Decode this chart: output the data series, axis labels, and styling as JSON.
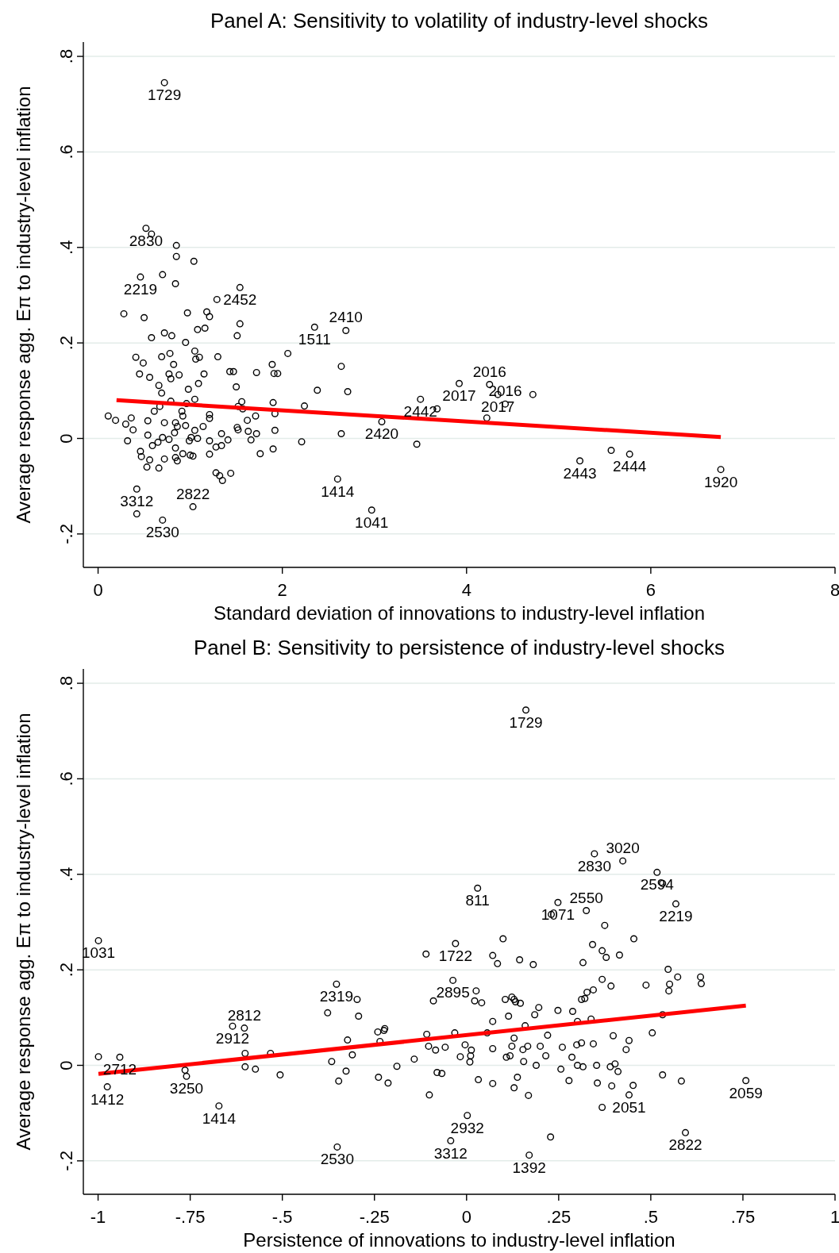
{
  "chart_data": [
    {
      "type": "scatter",
      "title": "Panel A: Sensitivity to volatility of industry-level shocks",
      "xlabel": "Standard deviation of innovations to industry-level inflation",
      "ylabel": "Average response agg. Eπ to industry-level inflation",
      "xlim": [
        -0.16,
        8
      ],
      "ylim": [
        -0.27,
        0.83
      ],
      "xticks": [
        0,
        2,
        4,
        6,
        8
      ],
      "yticks": [
        {
          "value": -0.2,
          "label": "-.2"
        },
        0,
        {
          "value": 0.2,
          "label": ".2"
        },
        {
          "value": 0.4,
          "label": ".4"
        },
        {
          "value": 0.6,
          "label": ".6"
        },
        {
          "value": 0.8,
          "label": ".8"
        }
      ],
      "grid": "y",
      "marker": "circle",
      "series": [
        {
          "color": "#000000",
          "x": [
            0.72,
            0.52,
            0.58,
            0.85,
            0.85,
            1.04,
            0.46,
            0.7,
            0.84,
            1.54,
            1.29,
            0.28,
            0.5,
            0.97,
            1.18,
            1.21,
            2.35,
            2.69,
            1.54,
            1.08,
            1.16,
            0.72,
            0.8,
            0.58,
            1.51,
            0.95,
            0.41,
            0.69,
            0.78,
            1.05,
            1.06,
            1.1,
            1.3,
            2.06,
            0.49,
            0.82,
            1.89,
            2.64,
            0.45,
            0.56,
            0.77,
            0.79,
            0.88,
            1.15,
            1.43,
            1.47,
            1.72,
            1.91,
            1.95,
            3.92,
            4.25,
            0.66,
            1.09,
            1.5,
            2.38,
            2.71,
            0.98,
            0.69,
            3.5,
            4.72,
            4.34,
            4.42,
            0.79,
            1.05,
            0.96,
            1.56,
            1.9,
            2.24,
            3.68,
            0.67,
            0.61,
            1.57,
            0.91,
            0.92,
            1.21,
            1.92,
            1.71,
            1.52,
            3.08,
            4.22,
            0.11,
            0.36,
            0.19,
            0.54,
            0.72,
            1.21,
            0.84,
            0.86,
            0.95,
            1.62,
            0.3,
            1.92,
            0.38,
            1.05,
            1.14,
            1.52,
            1.51,
            1.63,
            2.64,
            1.34,
            1.72,
            0.83,
            0.54,
            1.01,
            0.7,
            0.77,
            0.32,
            1.21,
            0.99,
            1.08,
            1.41,
            1.66,
            0.65,
            2.21,
            3.46,
            0.59,
            1.34,
            1.28,
            0.84,
            1.9,
            0.46,
            0.92,
            1.0,
            0.84,
            1.03,
            0.47,
            1.76,
            1.21,
            0.86,
            0.72,
            0.56,
            0.66,
            0.53,
            1.28,
            1.32,
            1.44,
            1.35,
            2.6,
            0.42,
            1.03,
            2.97,
            0.7,
            0.42,
            5.23,
            5.57,
            5.77,
            6.76
          ],
          "values": [
            0.745,
            0.44,
            0.428,
            0.404,
            0.381,
            0.371,
            0.338,
            0.343,
            0.324,
            0.316,
            0.291,
            0.261,
            0.253,
            0.263,
            0.265,
            0.255,
            0.233,
            0.226,
            0.24,
            0.228,
            0.231,
            0.221,
            0.215,
            0.211,
            0.215,
            0.201,
            0.17,
            0.171,
            0.178,
            0.183,
            0.166,
            0.17,
            0.171,
            0.178,
            0.158,
            0.155,
            0.155,
            0.151,
            0.135,
            0.128,
            0.135,
            0.125,
            0.133,
            0.135,
            0.14,
            0.14,
            0.138,
            0.136,
            0.136,
            0.115,
            0.113,
            0.111,
            0.115,
            0.108,
            0.101,
            0.098,
            0.103,
            0.095,
            0.082,
            0.092,
            0.092,
            0.072,
            0.078,
            0.082,
            0.073,
            0.077,
            0.075,
            0.068,
            0.062,
            0.067,
            0.057,
            0.062,
            0.057,
            0.047,
            0.05,
            0.052,
            0.047,
            0.067,
            0.035,
            0.043,
            0.047,
            0.043,
            0.038,
            0.037,
            0.033,
            0.042,
            0.033,
            0.025,
            0.027,
            0.038,
            0.03,
            0.017,
            0.018,
            0.017,
            0.025,
            0.018,
            0.023,
            0.015,
            0.01,
            0.01,
            0.01,
            0.012,
            0.007,
            0.002,
            0.002,
            -0.002,
            -0.005,
            -0.005,
            -0.005,
            0,
            -0.003,
            -0.003,
            -0.008,
            -0.007,
            -0.012,
            -0.015,
            -0.015,
            -0.018,
            -0.02,
            -0.022,
            -0.027,
            -0.032,
            -0.035,
            -0.04,
            -0.037,
            -0.038,
            -0.032,
            -0.033,
            -0.047,
            -0.043,
            -0.045,
            -0.062,
            -0.06,
            -0.072,
            -0.078,
            -0.073,
            -0.088,
            -0.085,
            -0.106,
            -0.143,
            -0.15,
            -0.171,
            -0.158,
            -0.047,
            -0.025,
            -0.033,
            -0.065
          ]
        },
        {
          "type": "line",
          "marker": "none",
          "color": "#ff0000",
          "x": [
            0.2,
            6.76
          ],
          "values": [
            0.08,
            0.003
          ]
        }
      ],
      "annotations": [
        {
          "text": "1729",
          "x": 0.72,
          "y": 0.745
        },
        {
          "text": "2830",
          "x": 0.52,
          "y": 0.44
        },
        {
          "text": "2219",
          "x": 0.46,
          "y": 0.338
        },
        {
          "text": "2452",
          "x": 1.54,
          "y": 0.316
        },
        {
          "text": "1511",
          "x": 2.35,
          "y": 0.233
        },
        {
          "text": "2410",
          "x": 2.69,
          "y": 0.226
        },
        {
          "text": "2017",
          "x": 3.92,
          "y": 0.115
        },
        {
          "text": "2016",
          "x": 4.25,
          "y": 0.113
        },
        {
          "text": "2442",
          "x": 3.5,
          "y": 0.082
        },
        {
          "text": "2017",
          "x": 4.34,
          "y": 0.092
        },
        {
          "text": "2016",
          "x": 4.42,
          "y": 0.072
        },
        {
          "text": "2420",
          "x": 3.08,
          "y": 0.035
        },
        {
          "text": "1414",
          "x": 2.6,
          "y": -0.085
        },
        {
          "text": "1041",
          "x": 2.97,
          "y": -0.15
        },
        {
          "text": "2530",
          "x": 0.7,
          "y": -0.171
        },
        {
          "text": "2822",
          "x": 1.03,
          "y": -0.143
        },
        {
          "text": "3312",
          "x": 0.42,
          "y": -0.158
        },
        {
          "text": "2443",
          "x": 5.23,
          "y": -0.047
        },
        {
          "text": "2444",
          "x": 5.77,
          "y": -0.033
        },
        {
          "text": "1920",
          "x": 6.76,
          "y": -0.065
        }
      ]
    },
    {
      "type": "scatter",
      "title": "Panel B: Sensitivity to persistence of industry-level shocks",
      "xlabel": "Persistence of innovations to industry-level inflation",
      "ylabel": "Average response agg. Eπ to industry-level inflation",
      "xlim": [
        -1.04,
        1
      ],
      "ylim": [
        -0.27,
        0.83
      ],
      "xticks": [
        -1,
        {
          "value": -0.75,
          "label": "-.75"
        },
        {
          "value": -0.5,
          "label": "-.5"
        },
        {
          "value": -0.25,
          "label": "-.25"
        },
        0,
        {
          "value": 0.25,
          "label": ".25"
        },
        {
          "value": 0.5,
          "label": ".5"
        },
        {
          "value": 0.75,
          "label": ".75"
        },
        1
      ],
      "yticks": [
        {
          "value": -0.2,
          "label": "-.2"
        },
        0,
        {
          "value": 0.2,
          "label": ".2"
        },
        {
          "value": 0.4,
          "label": ".4"
        },
        {
          "value": 0.6,
          "label": ".6"
        },
        {
          "value": 0.8,
          "label": ".8"
        }
      ],
      "grid": "y",
      "marker": "circle",
      "series": [
        {
          "color": "#000000",
          "x": [
            0.161,
            0.347,
            0.424,
            0.517,
            0.532,
            0.03,
            0.248,
            0.23,
            0.325,
            0.568,
            -0.999,
            0.375,
            -0.03,
            0.099,
            0.342,
            0.454,
            -0.11,
            0.071,
            0.368,
            0.415,
            0.379,
            0.144,
            0.084,
            0.181,
            0.316,
            0.547,
            0.573,
            0.635,
            0.637,
            0.551,
            0.549,
            0.368,
            0.487,
            0.392,
            -0.353,
            -0.037,
            0.327,
            0.026,
            0.344,
            0.312,
            0.321,
            -0.09,
            -0.297,
            0.022,
            0.041,
            0.105,
            0.123,
            0.129,
            0.133,
            0.146,
            0.196,
            -0.377,
            0.248,
            0.288,
            -0.293,
            0.185,
            0.114,
            0.532,
            -0.635,
            -0.603,
            0.071,
            0.301,
            0.338,
            0.159,
            -0.222,
            -0.224,
            -0.241,
            -0.108,
            -0.032,
            0.056,
            0.22,
            0.398,
            0.504,
            0.129,
            -0.323,
            -0.235,
            0.441,
            -0.941,
            -0.999,
            -0.601,
            -0.532,
            -0.31,
            -0.103,
            -0.084,
            -0.058,
            -0.004,
            0.013,
            0.071,
            0.123,
            0.153,
            0.166,
            0.2,
            0.26,
            0.299,
            0.312,
            0.344,
            0.433,
            -0.017,
            0.011,
            -0.142,
            0.286,
            -0.366,
            0.009,
            0.118,
            0.108,
            0.155,
            0.215,
            0.353,
            0.301,
            0.39,
            0.403,
            0.411,
            -0.189,
            -0.601,
            -0.573,
            0.189,
            0.256,
            0.316,
            -0.327,
            -0.764,
            -0.08,
            -0.067,
            -0.506,
            -0.76,
            -0.239,
            0.532,
            0.032,
            -0.213,
            -0.347,
            0.071,
            0.138,
            0.278,
            0.355,
            0.394,
            0.452,
            0.583,
            0.758,
            0.441,
            0.168,
            0.129,
            -0.101,
            -0.975,
            -0.672,
            0.368,
            0.002,
            0.228,
            0.594,
            -0.351,
            0.17,
            -0.043
          ],
          "values": [
            0.744,
            0.443,
            0.428,
            0.404,
            0.381,
            0.371,
            0.341,
            0.316,
            0.324,
            0.338,
            0.261,
            0.293,
            0.255,
            0.265,
            0.253,
            0.265,
            0.233,
            0.23,
            0.24,
            0.231,
            0.226,
            0.221,
            0.213,
            0.211,
            0.215,
            0.201,
            0.185,
            0.185,
            0.171,
            0.17,
            0.156,
            0.18,
            0.168,
            0.166,
            0.17,
            0.178,
            0.153,
            0.156,
            0.158,
            0.138,
            0.14,
            0.135,
            0.138,
            0.135,
            0.131,
            0.138,
            0.143,
            0.138,
            0.133,
            0.13,
            0.121,
            0.11,
            0.115,
            0.113,
            0.103,
            0.106,
            0.103,
            0.106,
            0.082,
            0.078,
            0.092,
            0.092,
            0.097,
            0.083,
            0.077,
            0.073,
            0.07,
            0.065,
            0.068,
            0.068,
            0.063,
            0.062,
            0.068,
            0.057,
            0.053,
            0.05,
            0.052,
            0.017,
            0.018,
            0.025,
            0.025,
            0.022,
            0.04,
            0.032,
            0.038,
            0.043,
            0.032,
            0.035,
            0.04,
            0.033,
            0.04,
            0.04,
            0.038,
            0.043,
            0.047,
            0.045,
            0.033,
            0.018,
            0.02,
            0.013,
            0.017,
            0.008,
            0.007,
            0.02,
            0.017,
            0.008,
            0.02,
            0,
            0,
            -0.003,
            0.003,
            -0.013,
            -0.002,
            -0.003,
            -0.008,
            0,
            -0.008,
            -0.003,
            -0.012,
            -0.01,
            -0.015,
            -0.017,
            -0.02,
            -0.023,
            -0.025,
            -0.02,
            -0.03,
            -0.037,
            -0.033,
            -0.038,
            -0.025,
            -0.032,
            -0.037,
            -0.043,
            -0.042,
            -0.033,
            -0.032,
            -0.062,
            -0.063,
            -0.047,
            -0.062,
            -0.045,
            -0.085,
            -0.088,
            -0.105,
            -0.15,
            -0.141,
            -0.171,
            -0.188,
            -0.158
          ]
        },
        {
          "type": "line",
          "marker": "none",
          "color": "#ff0000",
          "x": [
            -0.999,
            0.758
          ],
          "values": [
            -0.018,
            0.125
          ]
        }
      ],
      "annotations": [
        {
          "text": "1729",
          "x": 0.161,
          "y": 0.744
        },
        {
          "text": "2830",
          "x": 0.347,
          "y": 0.443
        },
        {
          "text": "3020",
          "x": 0.424,
          "y": 0.428
        },
        {
          "text": "2594",
          "x": 0.517,
          "y": 0.404
        },
        {
          "text": "811",
          "x": 0.03,
          "y": 0.371
        },
        {
          "text": "1071",
          "x": 0.248,
          "y": 0.341
        },
        {
          "text": "2550",
          "x": 0.325,
          "y": 0.324
        },
        {
          "text": "2219",
          "x": 0.568,
          "y": 0.338
        },
        {
          "text": "1031",
          "x": -0.999,
          "y": 0.261
        },
        {
          "text": "1722",
          "x": -0.03,
          "y": 0.255
        },
        {
          "text": "2319",
          "x": -0.353,
          "y": 0.17
        },
        {
          "text": "2895",
          "x": -0.037,
          "y": 0.178
        },
        {
          "text": "2912",
          "x": -0.635,
          "y": 0.082
        },
        {
          "text": "2812",
          "x": -0.603,
          "y": 0.078
        },
        {
          "text": "2712",
          "x": -0.941,
          "y": 0.017
        },
        {
          "text": "1412",
          "x": -0.975,
          "y": -0.045
        },
        {
          "text": "3250",
          "x": -0.76,
          "y": -0.023
        },
        {
          "text": "1414",
          "x": -0.672,
          "y": -0.085
        },
        {
          "text": "2932",
          "x": 0.002,
          "y": -0.105
        },
        {
          "text": "3312",
          "x": -0.043,
          "y": -0.158
        },
        {
          "text": "2530",
          "x": -0.351,
          "y": -0.171
        },
        {
          "text": "1392",
          "x": 0.17,
          "y": -0.188
        },
        {
          "text": "2822",
          "x": 0.594,
          "y": -0.141
        },
        {
          "text": "2051",
          "x": 0.441,
          "y": -0.062
        },
        {
          "text": "2059",
          "x": 0.758,
          "y": -0.032
        }
      ]
    }
  ]
}
